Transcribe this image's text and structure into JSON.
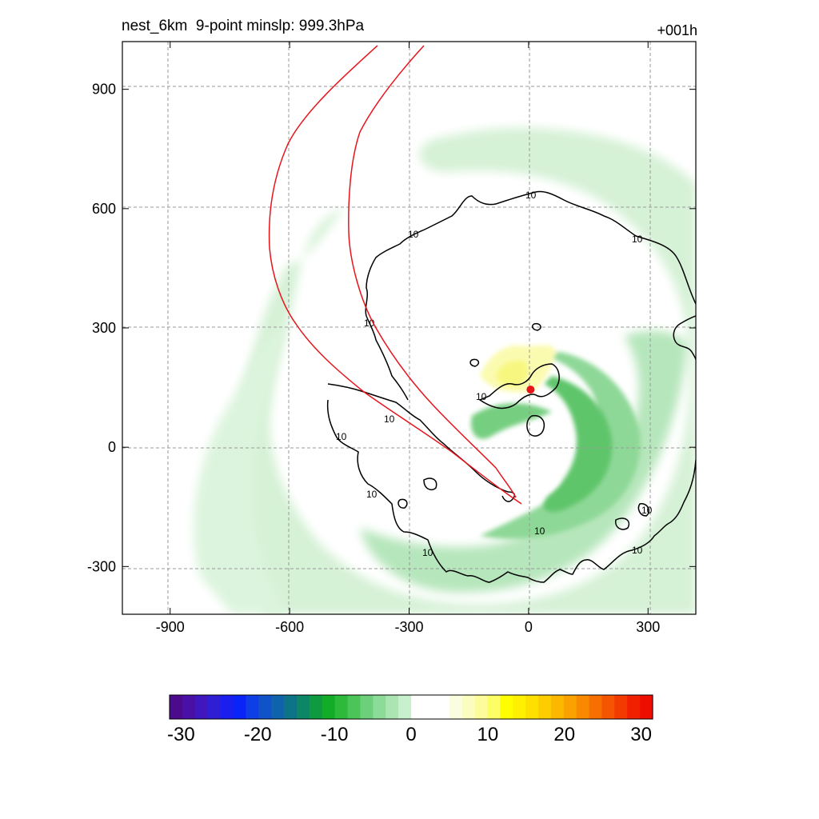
{
  "header": {
    "title": "nest_6km  9-point minslp: 999.3hPa",
    "forecast_hour": "+001h"
  },
  "map": {
    "x_ticks": [
      "-900",
      "-600",
      "-300",
      "0",
      "300"
    ],
    "y_ticks": [
      "900",
      "600",
      "300",
      "0",
      "-300"
    ],
    "x_tick_values": [
      -900,
      -600,
      -300,
      0,
      300
    ],
    "y_tick_values": [
      900,
      600,
      300,
      0,
      -300
    ],
    "x_range": [
      -1020,
      420
    ],
    "y_range": [
      -420,
      1020
    ],
    "grid": "dashed",
    "contour_label": "10",
    "center_marker": {
      "x": 5,
      "y": 145,
      "color": "#e8141c"
    },
    "track_color": "#e8141c",
    "contour_color": "#000000"
  },
  "colorbar": {
    "labels": [
      "-30",
      "-20",
      "-10",
      "0",
      "10",
      "20",
      "30"
    ],
    "min": -31.5,
    "max": 31.5,
    "colors": [
      "#4b0b8c",
      "#4a0fa4",
      "#3f17bc",
      "#2e1fd4",
      "#1a1ff0",
      "#0a24f8",
      "#0d3ee6",
      "#1052c8",
      "#0f63aa",
      "#0c7486",
      "#0c8664",
      "#0f9a40",
      "#12ad27",
      "#2db93a",
      "#4bc458",
      "#6ccf7a",
      "#8ddb98",
      "#abe6b2",
      "#c9f0cd",
      "#ffffff",
      "#ffffff",
      "#ffffff",
      "#fbfde0",
      "#fbfdc0",
      "#fcfd9a",
      "#fdfd66",
      "#fefe00",
      "#fef000",
      "#fde000",
      "#fdcd00",
      "#fcb800",
      "#fba200",
      "#f98a00",
      "#f76f00",
      "#f55400",
      "#f33a00",
      "#f02000",
      "#ee0e00"
    ]
  }
}
